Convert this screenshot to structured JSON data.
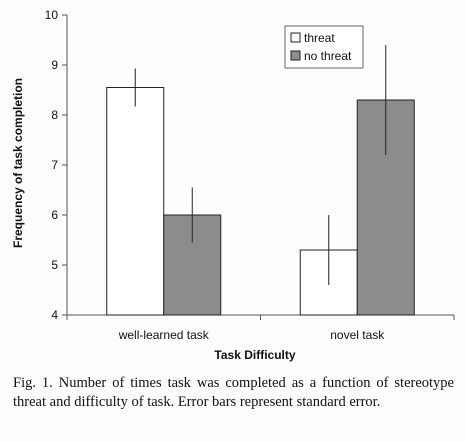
{
  "chart_data": {
    "type": "bar",
    "categories": [
      "well-learned task",
      "novel task"
    ],
    "series": [
      {
        "name": "threat",
        "values": [
          8.55,
          5.3
        ],
        "error": [
          0.38,
          0.7
        ],
        "color": "#ffffff"
      },
      {
        "name": "no threat",
        "values": [
          6.0,
          8.3
        ],
        "error": [
          0.55,
          1.1
        ],
        "color": "#8c8c8c"
      }
    ],
    "xlabel": "Task Difficulty",
    "ylabel": "Frequency of task completion",
    "ylim": [
      4,
      10
    ],
    "yticks": [
      "4",
      "5",
      "6",
      "7",
      "8",
      "9",
      "10"
    ],
    "grid": false,
    "legend_position": "top-right"
  },
  "caption": "Fig. 1. Number of times task was completed as a function of stereotype threat and difficulty of task. Error bars represent standard error."
}
